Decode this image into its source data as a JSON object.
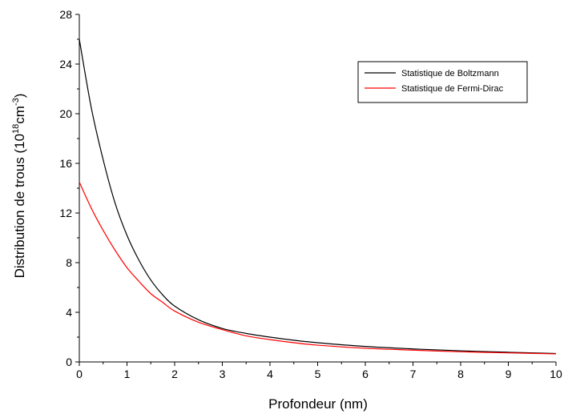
{
  "chart_data": {
    "type": "line",
    "xlabel": "Profondeur (nm)",
    "ylabel": {
      "prefix": "Distribution de trous (10",
      "sup1": "18",
      "mid": "cm",
      "sup2": "-3",
      "suffix": ")"
    },
    "xlim": [
      0,
      10
    ],
    "ylim": [
      0,
      28
    ],
    "xticks": [
      0,
      1,
      2,
      3,
      4,
      5,
      6,
      7,
      8,
      9,
      10
    ],
    "yticks": [
      0,
      4,
      8,
      12,
      16,
      20,
      24,
      28
    ],
    "grid": false,
    "legend_position": "top-right",
    "x": [
      0,
      0.25,
      0.5,
      0.75,
      1,
      1.25,
      1.5,
      1.75,
      2,
      2.5,
      3,
      3.5,
      4,
      4.5,
      5,
      6,
      7,
      8,
      9,
      10
    ],
    "series": [
      {
        "name": "Statistique de Boltzmann",
        "color": "#000000",
        "values": [
          26.0,
          20.5,
          16.3,
          12.8,
          10.2,
          8.2,
          6.6,
          5.4,
          4.5,
          3.4,
          2.7,
          2.3,
          2.0,
          1.75,
          1.55,
          1.25,
          1.05,
          0.9,
          0.78,
          0.68
        ]
      },
      {
        "name": "Statistique de Fermi-Dirac",
        "color": "#ff0000",
        "values": [
          14.5,
          12.4,
          10.6,
          9.0,
          7.6,
          6.5,
          5.5,
          4.8,
          4.1,
          3.2,
          2.6,
          2.1,
          1.8,
          1.55,
          1.35,
          1.1,
          0.95,
          0.82,
          0.73,
          0.65
        ]
      }
    ]
  }
}
